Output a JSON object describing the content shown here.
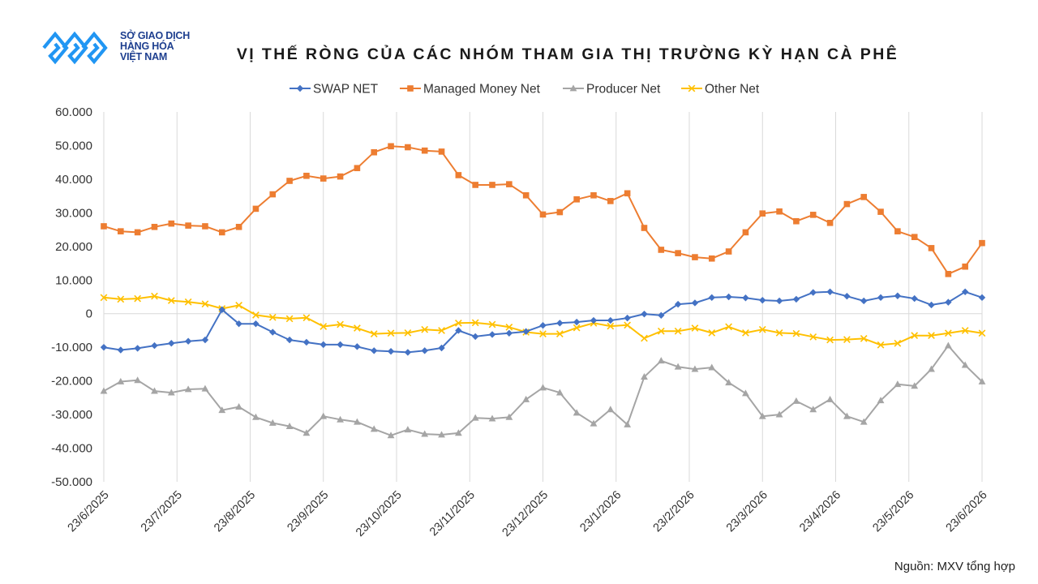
{
  "header": {
    "logo_line1": "SỞ GIAO DỊCH",
    "logo_line2": "HÀNG HÓA",
    "logo_line3": "VIỆT NAM",
    "title": "VỊ THẾ RÒNG CỦA CÁC NHÓM THAM GIA THỊ TRƯỜNG KỲ HẠN CÀ PHÊ"
  },
  "footer": {
    "source": "Nguồn:  MXV tổng hợp"
  },
  "colors": {
    "swap": "#4472C4",
    "managed": "#ED7D31",
    "producer": "#A5A5A5",
    "other": "#FFC000",
    "grid": "#D9D9D9",
    "logo": "#2196F3"
  },
  "chart_data": {
    "type": "line",
    "title": "VỊ THẾ RÒNG CỦA CÁC NHÓM THAM GIA THỊ TRƯỜNG KỲ HẠN CÀ PHÊ",
    "xlabel": "",
    "ylabel": "",
    "ylim": [
      -50000,
      60000
    ],
    "y_ticks": [
      60000,
      50000,
      40000,
      30000,
      20000,
      10000,
      0,
      -10000,
      -20000,
      -30000,
      -40000,
      -50000
    ],
    "y_tick_labels": [
      "60.000",
      "50.000",
      "40.000",
      "30.000",
      "20.000",
      "10.000",
      "0",
      "-10.000",
      "-20.000",
      "-30.000",
      "-40.000",
      "-50.000"
    ],
    "x_tick_labels": [
      "23/6/2025",
      "23/7/2025",
      "23/8/2025",
      "23/9/2025",
      "23/10/2025",
      "23/11/2025",
      "23/12/2025",
      "23/1/2026",
      "23/2/2026",
      "23/3/2026",
      "23/4/2026",
      "23/5/2026",
      "23/6/2026"
    ],
    "grid": true,
    "legend_position": "top",
    "series": [
      {
        "name": "SWAP NET",
        "marker": "diamond",
        "values": [
          -10000,
          -10800,
          -10300,
          -9500,
          -8800,
          -8200,
          -7800,
          1200,
          -3000,
          -3000,
          -5500,
          -7800,
          -8500,
          -9200,
          -9200,
          -9800,
          -11000,
          -11200,
          -11500,
          -11000,
          -10200,
          -5000,
          -6800,
          -6200,
          -5800,
          -5300,
          -3500,
          -2800,
          -2500,
          -2000,
          -2000,
          -1300,
          -100,
          -500,
          2800,
          3200,
          4800,
          5000,
          4700,
          4000,
          3800,
          4300,
          6300,
          6500,
          5200,
          3800,
          4800,
          5300,
          4500,
          2600,
          3400,
          6500,
          4800
        ]
      },
      {
        "name": "Managed Money Net",
        "marker": "square",
        "values": [
          26000,
          24500,
          24200,
          25800,
          26800,
          26200,
          26000,
          24200,
          25800,
          31200,
          35500,
          39500,
          41000,
          40200,
          40800,
          43300,
          48000,
          49800,
          49500,
          48500,
          48200,
          41200,
          38300,
          38300,
          38500,
          35200,
          29500,
          30200,
          34000,
          35200,
          33500,
          35800,
          25500,
          19000,
          18000,
          16800,
          16400,
          18500,
          24200,
          29800,
          30400,
          27500,
          29400,
          27000,
          32600,
          34700,
          30300,
          24500,
          22800,
          19500,
          11800,
          14000,
          21000
        ]
      },
      {
        "name": "Producer Net",
        "marker": "triangle",
        "values": [
          -23000,
          -20200,
          -19800,
          -23000,
          -23500,
          -22500,
          -22300,
          -28700,
          -27700,
          -30800,
          -32500,
          -33500,
          -35500,
          -30500,
          -31500,
          -32200,
          -34300,
          -36200,
          -34500,
          -35800,
          -36000,
          -35500,
          -31000,
          -31200,
          -30800,
          -25500,
          -22000,
          -23500,
          -29500,
          -32700,
          -28500,
          -33000,
          -18800,
          -14000,
          -15800,
          -16500,
          -16000,
          -20500,
          -23700,
          -30500,
          -30000,
          -26000,
          -28500,
          -25500,
          -30500,
          -32200,
          -25800,
          -21000,
          -21500,
          -16500,
          -9500,
          -15300,
          -20200
        ]
      },
      {
        "name": "Other Net",
        "marker": "x",
        "values": [
          4800,
          4300,
          4500,
          5200,
          3900,
          3500,
          2900,
          1500,
          2500,
          -400,
          -1100,
          -1500,
          -1200,
          -3800,
          -3200,
          -4300,
          -6000,
          -5800,
          -5700,
          -4700,
          -5000,
          -2800,
          -2700,
          -3200,
          -4000,
          -5500,
          -6000,
          -6000,
          -4200,
          -2800,
          -3700,
          -3400,
          -7300,
          -5200,
          -5200,
          -4300,
          -5700,
          -3900,
          -5700,
          -4700,
          -5700,
          -5900,
          -6900,
          -7800,
          -7700,
          -7400,
          -9300,
          -8800,
          -6500,
          -6500,
          -5800,
          -5000,
          -5800
        ]
      }
    ]
  }
}
